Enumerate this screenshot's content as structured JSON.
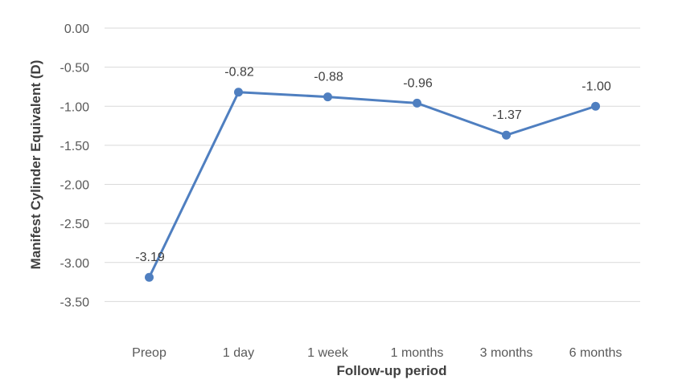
{
  "chart_data": {
    "type": "line",
    "title": "",
    "xlabel": "Follow-up period",
    "ylabel": "Manifest Cylinder Equivalent (D)",
    "categories": [
      "Preop",
      "1 day",
      "1 week",
      "1 months",
      "3 months",
      "6 months"
    ],
    "series": [
      {
        "values": [
          -3.19,
          -0.82,
          -0.88,
          -0.96,
          -1.37,
          -1.0
        ],
        "labels": [
          "-3.19",
          "-0.82",
          "-0.88",
          "-0.96",
          "-1.37",
          "-1.00"
        ]
      }
    ],
    "yticks": [
      "0.00",
      "-0.50",
      "-1.00",
      "-1.50",
      "-2.00",
      "-2.50",
      "-3.00",
      "-3.50"
    ],
    "ylim": [
      -4.0,
      0.0
    ],
    "grid": "horizontal",
    "legend": "none",
    "colors": {
      "line": "#4f7fc0",
      "grid": "#d9d9d9"
    }
  }
}
